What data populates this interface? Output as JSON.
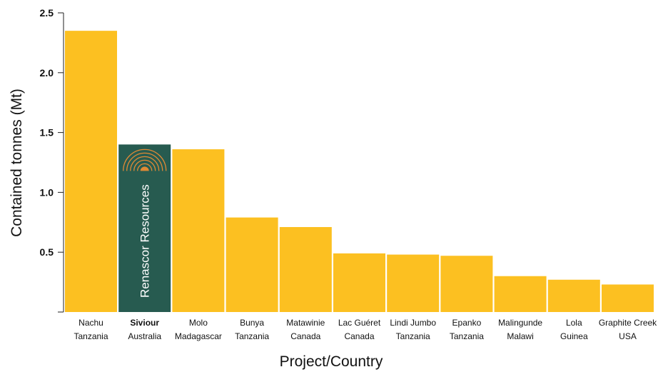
{
  "chart_data": {
    "type": "bar",
    "ylabel": "Contained tonnes (Mt)",
    "xlabel": "Project/Country",
    "ylim": [
      0,
      2.5
    ],
    "yticks": [
      "0.5",
      "1.0",
      "1.5",
      "2.0",
      "2.5"
    ],
    "grid": false,
    "bar_color": "#fcc021",
    "highlight_color": "#275b50",
    "logo_color": "#e08a35",
    "highlight_text": "Renascor Resources",
    "categories": [
      {
        "project": "Nachu",
        "country": "Tanzania",
        "value": 2.35
      },
      {
        "project": "Siviour",
        "country": "Australia",
        "value": 1.4,
        "highlight": true
      },
      {
        "project": "Molo",
        "country": "Madagascar",
        "value": 1.36
      },
      {
        "project": "Bunya",
        "country": "Tanzania",
        "value": 0.79
      },
      {
        "project": "Matawinie",
        "country": "Canada",
        "value": 0.71
      },
      {
        "project": "Lac Guéret",
        "country": "Canada",
        "value": 0.49
      },
      {
        "project": "Lindi Jumbo",
        "country": "Tanzania",
        "value": 0.48
      },
      {
        "project": "Epanko",
        "country": "Tanzania",
        "value": 0.47
      },
      {
        "project": "Malingunde",
        "country": "Malawi",
        "value": 0.3
      },
      {
        "project": "Lola",
        "country": "Guinea",
        "value": 0.27
      },
      {
        "project": "Graphite Creek",
        "country": "USA",
        "value": 0.23
      }
    ]
  }
}
